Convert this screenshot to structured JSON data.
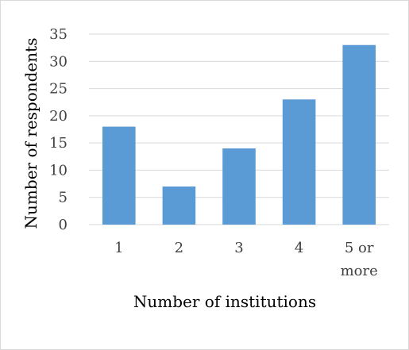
{
  "chart_data": {
    "type": "bar",
    "categories": [
      [
        "1"
      ],
      [
        "2"
      ],
      [
        "3"
      ],
      [
        "4"
      ],
      [
        "5 or",
        "more"
      ]
    ],
    "values": [
      18,
      7,
      14,
      23,
      33
    ],
    "xlabel": "Number of institutions",
    "ylabel": "Number of respondents",
    "ylim": [
      0,
      35
    ],
    "yticks": [
      0,
      5,
      10,
      15,
      20,
      25,
      30,
      35
    ],
    "grid": true,
    "legend": "none",
    "colors": {
      "bar": "#5b9bd5",
      "grid": "#d9d9d9",
      "axis": "#d9d9d9",
      "text": "#404040"
    }
  }
}
